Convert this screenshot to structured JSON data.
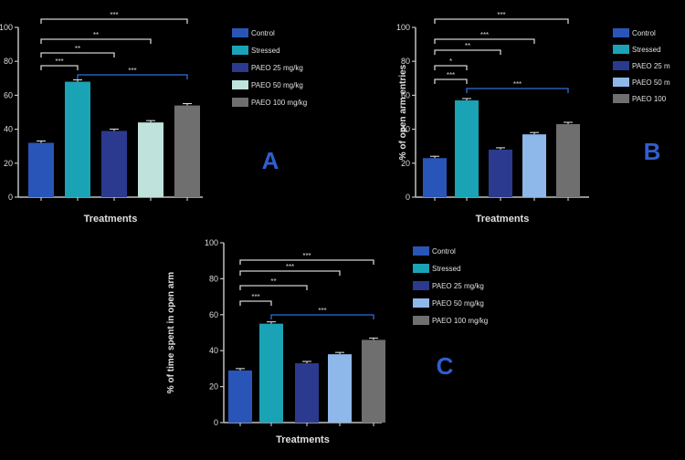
{
  "colors": {
    "background": "#000000",
    "axis": "#bfbfbf",
    "sig_bracket": "#cfcfcf",
    "highlight_bracket": "#2f6fd6",
    "panel_letter": "#2f5fd0",
    "control": "#2a55b8",
    "stressed": "#1aa3b5",
    "low_dose": "#2b3a8f",
    "mid_dose_a": "#bfe3dc",
    "mid_dose_bc": "#8fb8ea",
    "high_dose": "#6f6f6f"
  },
  "chart_data": [
    {
      "panel": "A",
      "type": "bar",
      "xlabel": "Treatments",
      "ylabel": "",
      "ylim": [
        0,
        100
      ],
      "yticks": [
        0,
        20,
        40,
        60,
        80,
        100
      ],
      "ytick_labels": [
        "0",
        "20",
        "40",
        "60",
        "80",
        "100"
      ],
      "categories": [
        "Control",
        "Stressed",
        "PAEO 25 mg/kg",
        "PAEO 50 mg/kg",
        "PAEO 100 mg/kg"
      ],
      "values": [
        32,
        68,
        39,
        44,
        54
      ],
      "legend": [
        "Control",
        "Stressed",
        "PAEO 25 mg/kg",
        "PAEO 50 mg/kg",
        "PAEO 100 mg/kg"
      ],
      "significance": [
        "***",
        "**",
        "**",
        "***",
        "***"
      ]
    },
    {
      "panel": "B",
      "type": "bar",
      "xlabel": "Treatments",
      "ylabel": "% of open arm entries",
      "ylim": [
        0,
        100
      ],
      "yticks": [
        0,
        20,
        40,
        60,
        80,
        100
      ],
      "ytick_labels": [
        "0",
        "20",
        "40",
        "60",
        "80",
        "100"
      ],
      "categories": [
        "Control",
        "Stressed",
        "PAEO 25 mg/kg",
        "PAEO 50 mg/kg",
        "PAEO 100 mg/kg"
      ],
      "values": [
        23,
        57,
        28,
        37,
        43
      ],
      "legend": [
        "Control",
        "Stressed",
        "PAEO 25 m",
        "PAEO 50 m",
        "PAEO 100"
      ],
      "significance": [
        "***",
        "***",
        "**",
        "*",
        "***",
        "***"
      ]
    },
    {
      "panel": "C",
      "type": "bar",
      "xlabel": "Treatments",
      "ylabel": "% of time spent in open arm",
      "ylim": [
        0,
        100
      ],
      "yticks": [
        0,
        20,
        40,
        60,
        80,
        100
      ],
      "ytick_labels": [
        "0",
        "20",
        "40",
        "60",
        "80",
        "100"
      ],
      "categories": [
        "Control",
        "Stressed",
        "PAEO 25 mg/kg",
        "PAEO 50 mg/kg",
        "PAEO 100 mg/kg"
      ],
      "values": [
        29,
        55,
        33,
        38,
        46
      ],
      "legend": [
        "Control",
        "Stressed",
        "PAEO 25 mg/kg",
        "PAEO 50 mg/kg",
        "PAEO 100 mg/kg"
      ],
      "significance": [
        "***",
        "***",
        "**",
        "***",
        "***"
      ]
    }
  ]
}
